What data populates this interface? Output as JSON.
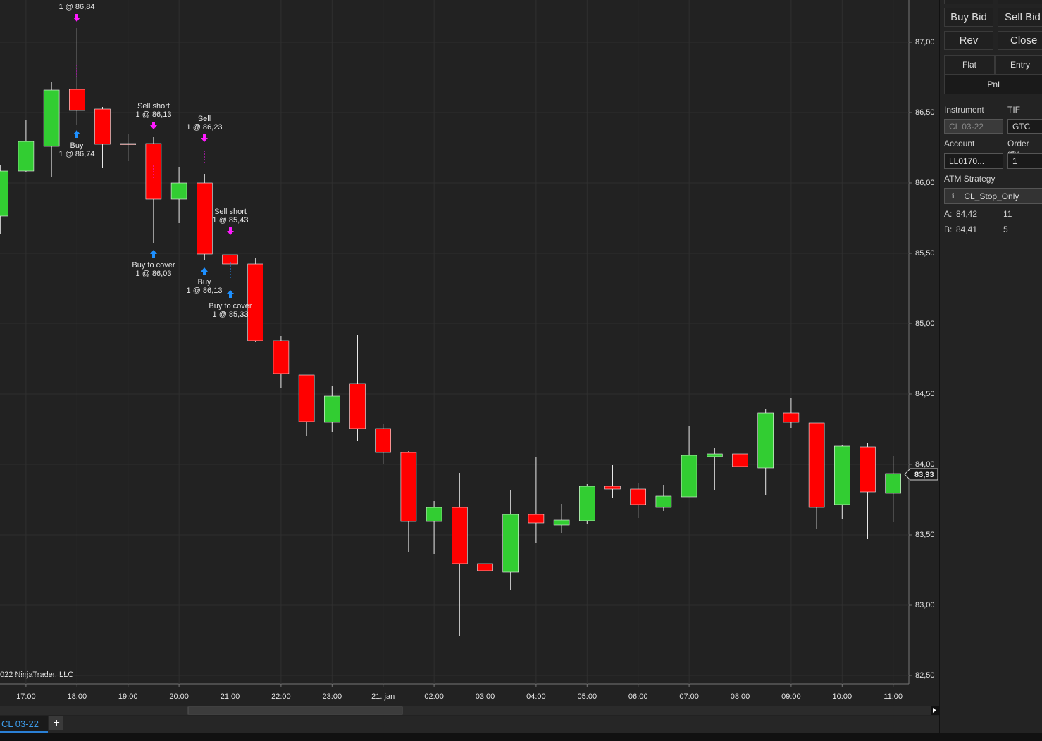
{
  "chart_data": {
    "type": "candlestick",
    "categories": [
      null,
      "17:00",
      null,
      "18:00",
      null,
      "19:00",
      null,
      "20:00",
      null,
      "21:00",
      null,
      "22:00",
      null,
      "23:00",
      null,
      "21. jan",
      null,
      "02:00",
      null,
      "03:00",
      null,
      "04:00",
      null,
      "05:00",
      null,
      "06:00",
      null,
      "07:00",
      null,
      "08:00",
      null,
      "09:00",
      null,
      "10:00",
      null,
      "11:00"
    ],
    "open": [
      85.765,
      86.085,
      86.26,
      86.665,
      86.525,
      86.28,
      86.28,
      85.885,
      86.0,
      85.49,
      85.425,
      84.88,
      84.635,
      84.3,
      84.575,
      84.255,
      84.085,
      83.595,
      83.695,
      83.295,
      83.235,
      83.645,
      83.57,
      83.6,
      83.845,
      83.825,
      83.695,
      83.77,
      84.055,
      84.075,
      83.975,
      84.365,
      84.295,
      83.715,
      84.125,
      83.795
    ],
    "high": [
      86.125,
      86.45,
      86.715,
      87.1,
      86.54,
      86.35,
      86.325,
      86.11,
      86.065,
      85.575,
      85.465,
      84.91,
      84.635,
      84.56,
      84.92,
      84.285,
      84.095,
      83.74,
      83.94,
      83.295,
      83.815,
      84.05,
      83.72,
      83.86,
      83.995,
      83.865,
      83.855,
      84.275,
      84.12,
      84.16,
      84.395,
      84.47,
      84.295,
      84.14,
      84.15,
      84.06
    ],
    "low": [
      85.635,
      86.08,
      86.045,
      86.415,
      86.105,
      86.155,
      85.575,
      85.715,
      85.455,
      85.29,
      84.87,
      84.54,
      84.2,
      84.23,
      84.17,
      84.0,
      83.38,
      83.365,
      82.78,
      82.805,
      83.11,
      83.44,
      83.515,
      83.58,
      83.765,
      83.62,
      83.67,
      83.77,
      83.82,
      83.88,
      83.785,
      84.26,
      83.54,
      83.61,
      83.47,
      83.59
    ],
    "close": [
      86.085,
      86.295,
      86.66,
      86.515,
      86.275,
      86.275,
      85.885,
      86.0,
      85.495,
      85.425,
      84.88,
      84.645,
      84.305,
      84.485,
      84.255,
      84.085,
      83.595,
      83.695,
      83.295,
      83.245,
      83.645,
      83.585,
      83.605,
      83.845,
      83.825,
      83.715,
      83.775,
      84.065,
      84.075,
      83.985,
      84.365,
      84.3,
      83.695,
      84.13,
      83.805,
      83.935
    ],
    "up_color": "#32cd32",
    "down_color": "#ff0000",
    "ylim": [
      82.44,
      87.3
    ],
    "yticks": [
      {
        "value": 82.5,
        "label": "82,50"
      },
      {
        "value": 83,
        "label": "83,00"
      },
      {
        "value": 83.5,
        "label": "83,50"
      },
      {
        "value": 84,
        "label": "84,00"
      },
      {
        "value": 84.5,
        "label": "84,50"
      },
      {
        "value": 85,
        "label": "85,00"
      },
      {
        "value": 85.5,
        "label": "85,50"
      },
      {
        "value": 86,
        "label": "86,00"
      },
      {
        "value": 86.5,
        "label": "86,50"
      },
      {
        "value": 87,
        "label": "87,00"
      }
    ],
    "grid": true,
    "last_price": {
      "value": 83.93,
      "label": "83,93"
    },
    "executions": [
      {
        "text": [
          "1 @ 86,84"
        ]
      },
      {
        "text": [
          "Buy",
          "1 @ 86,74"
        ]
      },
      {
        "text": [
          "Sell short",
          "1 @ 86,13"
        ]
      },
      {
        "text": [
          "Buy to cover",
          "1 @ 86,03"
        ]
      },
      {
        "text": [
          "Sell",
          "1 @ 86,23"
        ]
      },
      {
        "text": [
          "Buy",
          "1 @ 86,13"
        ]
      },
      {
        "text": [
          "Sell short",
          "1 @ 85,43"
        ]
      },
      {
        "text": [
          "Buy to cover",
          "1 @ 85,33"
        ]
      }
    ],
    "copyright": "022 NinjaTrader, LLC"
  },
  "tabs": {
    "instrument_tab": "CL 03-22",
    "add": "+"
  },
  "panel": {
    "buttons": [
      "Buy Bid",
      "Sell Bid",
      "Rev",
      "Close"
    ],
    "position_tabs": [
      "Flat",
      "Entry",
      "PnL"
    ],
    "instrument_label": "Instrument",
    "instrument": "CL 03-22",
    "tif_label": "TIF",
    "tif": "GTC",
    "account_label": "Account",
    "account": "LL0170...",
    "qty_label": "Order qty",
    "qty": "1",
    "atm_label": "ATM Strategy",
    "atm_info": "i",
    "atm": "CL_Stop_Only",
    "ask": [
      "A:",
      "84,42",
      "11"
    ],
    "bid": [
      "B:",
      "84,41",
      "5"
    ]
  }
}
